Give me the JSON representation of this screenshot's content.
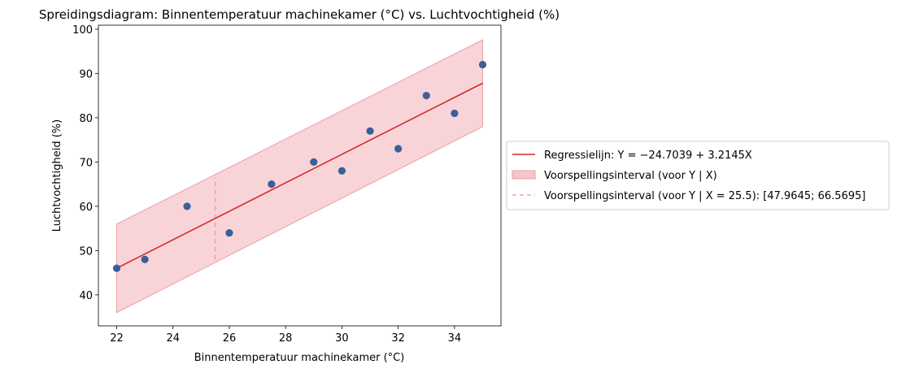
{
  "chart_data": {
    "type": "scatter",
    "title": "Spreidingsdiagram: Binnentemperatuur machinekamer ($^\\circ C$) vs. Luchtvochtigheid (%)",
    "title_display": "Spreidingsdiagram: Binnentemperatuur machinekamer (°C) vs. Luchtvochtigheid (%)",
    "xlabel": "Binnentemperatuur machinekamer (°C)",
    "ylabel": "Luchtvochtigheid (%)",
    "xlim": [
      21.35,
      35.65
    ],
    "ylim": [
      33.0,
      100.9
    ],
    "xticks": [
      22,
      24,
      26,
      28,
      30,
      32,
      34
    ],
    "yticks": [
      40,
      50,
      60,
      70,
      80,
      90,
      100
    ],
    "grid": false,
    "legend_position": "right, outside plot",
    "points": {
      "x": [
        22,
        23,
        24.5,
        26,
        27.5,
        29,
        30,
        31,
        32,
        33,
        34,
        35
      ],
      "y": [
        46,
        48,
        60,
        54,
        65,
        70,
        68,
        77,
        73,
        85,
        81,
        92
      ]
    },
    "regression": {
      "intercept": -24.7039,
      "slope": 3.2145,
      "x_range": [
        22,
        35
      ]
    },
    "prediction_band": {
      "x": [
        22,
        35
      ],
      "lower": [
        36.0,
        78.0
      ],
      "upper": [
        56.0,
        97.6
      ]
    },
    "prediction_at_x": {
      "x": 25.5,
      "lower": 47.9645,
      "upper": 66.5695
    },
    "legend": [
      {
        "label": "Regressielijn: Y = −24.7039 + 3.2145X",
        "kind": "line"
      },
      {
        "label": "Voorspellingsinterval (voor Y | X)",
        "kind": "band"
      },
      {
        "label": "Voorspellingsinterval (voor Y | X = 25.5): [47.9645; 66.5695]",
        "kind": "dashed"
      }
    ],
    "colors": {
      "points": "#3b5f99",
      "regression": "#d62728",
      "band_fill": "#f5c6cb",
      "band_edge": "#e8a0a0",
      "dashed": "#f0a8a0"
    }
  }
}
